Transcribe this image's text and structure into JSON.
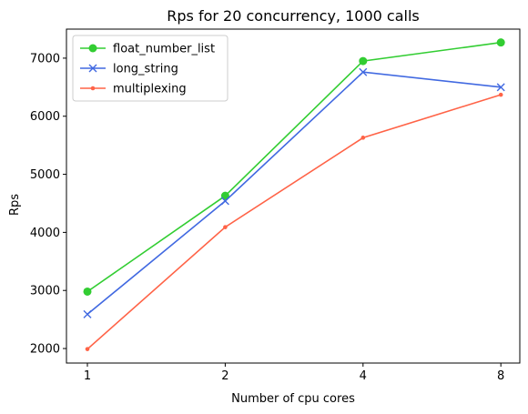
{
  "chart_data": {
    "type": "line",
    "title": "Rps for 20 concurrency, 1000 calls",
    "xlabel": "Number of cpu cores",
    "ylabel": "Rps",
    "x": [
      1,
      2,
      4,
      8
    ],
    "x_tick_labels": [
      "1",
      "2",
      "4",
      "8"
    ],
    "x_scale": "log2",
    "x_range": [
      0.9,
      8.8
    ],
    "ylim": [
      1750,
      7500
    ],
    "y_ticks": [
      2000,
      3000,
      4000,
      5000,
      6000,
      7000
    ],
    "y_tick_labels": [
      "2000",
      "3000",
      "4000",
      "5000",
      "6000",
      "7000"
    ],
    "grid": false,
    "legend_position": "upper-left",
    "series": [
      {
        "name": "float_number_list",
        "color": "#32cd32",
        "marker": "circle",
        "values": [
          2980,
          4630,
          6950,
          7270
        ]
      },
      {
        "name": "long_string",
        "color": "#4169e1",
        "marker": "x",
        "values": [
          2590,
          4540,
          6760,
          6500
        ]
      },
      {
        "name": "multiplexing",
        "color": "#ff6347",
        "marker": "point",
        "values": [
          1990,
          4090,
          5630,
          6370
        ]
      }
    ]
  }
}
